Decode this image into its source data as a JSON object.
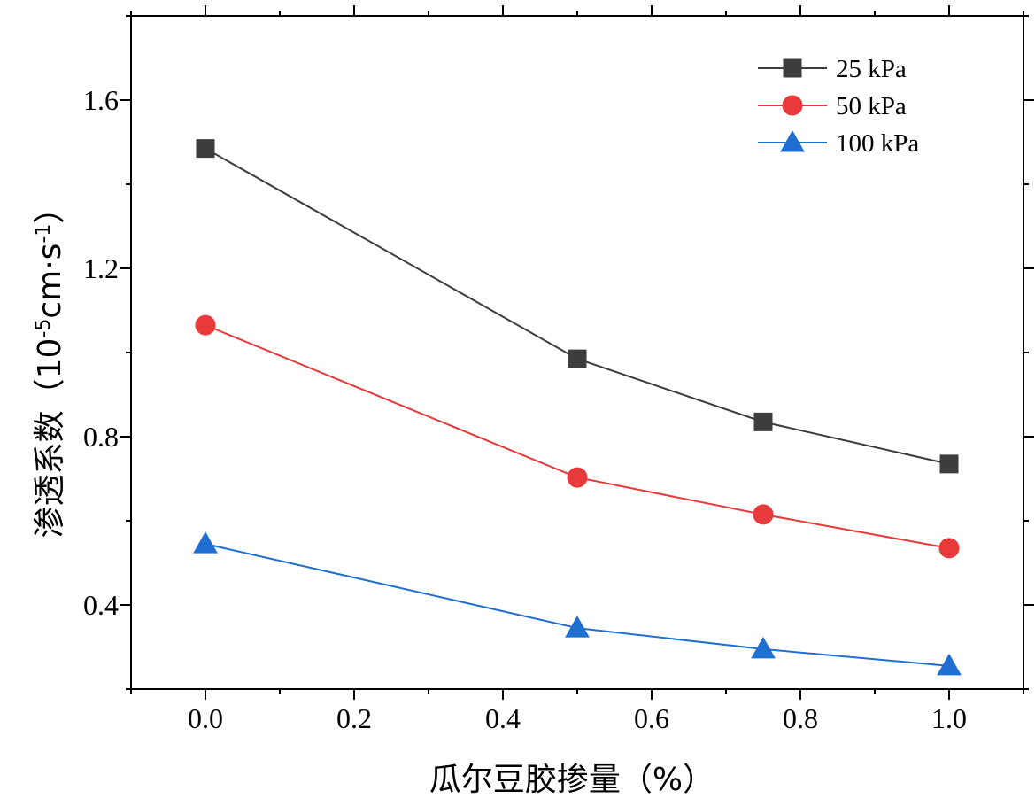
{
  "chart_data": {
    "type": "line",
    "title": "",
    "xlabel": "瓜尔豆胶掺量（%）",
    "ylabel": "渗透系数（10⁻⁵cm·s⁻¹）",
    "ylabel_parts": {
      "prefix": "渗透系数（10",
      "exp1": "-5",
      "mid": "cm·s",
      "exp2": "-1",
      "suffix": "）"
    },
    "xlim": [
      -0.1,
      1.1
    ],
    "ylim": [
      0.2,
      1.8
    ],
    "xticks": [
      0.0,
      0.2,
      0.4,
      0.6,
      0.8,
      1.0
    ],
    "xtick_labels": [
      "0.0",
      "0.2",
      "0.4",
      "0.6",
      "0.8",
      "1.0"
    ],
    "yticks": [
      0.4,
      0.8,
      1.2,
      1.6
    ],
    "ytick_labels": [
      "0.4",
      "0.8",
      "1.2",
      "1.6"
    ],
    "legend_position": "top-right",
    "x": [
      0.0,
      0.5,
      0.75,
      1.0
    ],
    "series": [
      {
        "name": "25 kPa",
        "values": [
          1.485,
          0.985,
          0.835,
          0.735
        ],
        "color": "#3d3d3d",
        "marker": "square"
      },
      {
        "name": "50 kPa",
        "values": [
          1.065,
          0.703,
          0.615,
          0.535
        ],
        "color": "#e83a3a",
        "marker": "circle"
      },
      {
        "name": "100 kPa",
        "values": [
          0.545,
          0.345,
          0.295,
          0.255
        ],
        "color": "#1f6fd1",
        "marker": "triangle"
      }
    ]
  }
}
